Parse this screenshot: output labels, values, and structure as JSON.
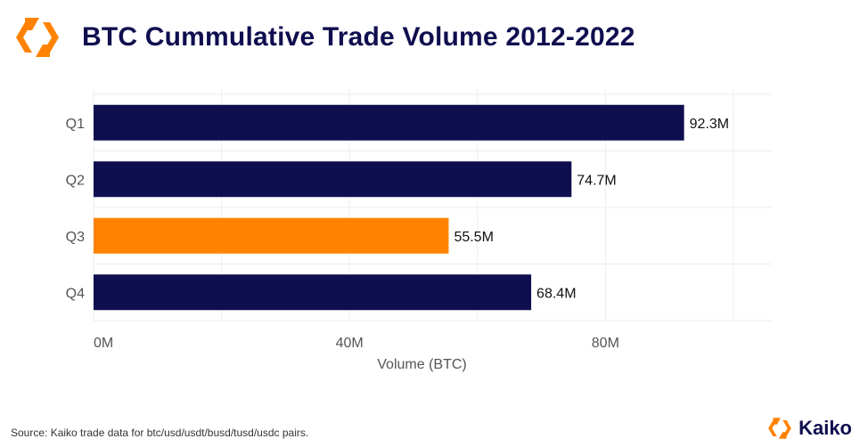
{
  "chart_data": {
    "type": "bar",
    "orientation": "horizontal",
    "title": "BTC Cummulative Trade Volume 2012-2022",
    "categories": [
      "Q1",
      "Q2",
      "Q3",
      "Q4"
    ],
    "values": [
      92.3,
      74.7,
      55.5,
      68.4
    ],
    "value_labels": [
      "92.3M",
      "74.7M",
      "55.5M",
      "68.4M"
    ],
    "highlight_index": 2,
    "xlabel": "Volume (BTC)",
    "ylabel": "",
    "xlim": [
      0,
      106
    ],
    "xticks": [
      0,
      40,
      80
    ],
    "xtick_labels": [
      "0M",
      "40M",
      "80M"
    ],
    "grid": true
  },
  "colors": {
    "bar": "#0f0e4f",
    "highlight": "#ff8300",
    "title": "#0f0e4f",
    "grid": "#ececec",
    "tick_text": "#555555"
  },
  "source_note": "Source: Kaiko trade data for btc/usd/usdt/busd/tusd/usdc pairs.",
  "brand": {
    "name": "Kaiko",
    "logo_icon": "kaiko-logo-icon"
  }
}
